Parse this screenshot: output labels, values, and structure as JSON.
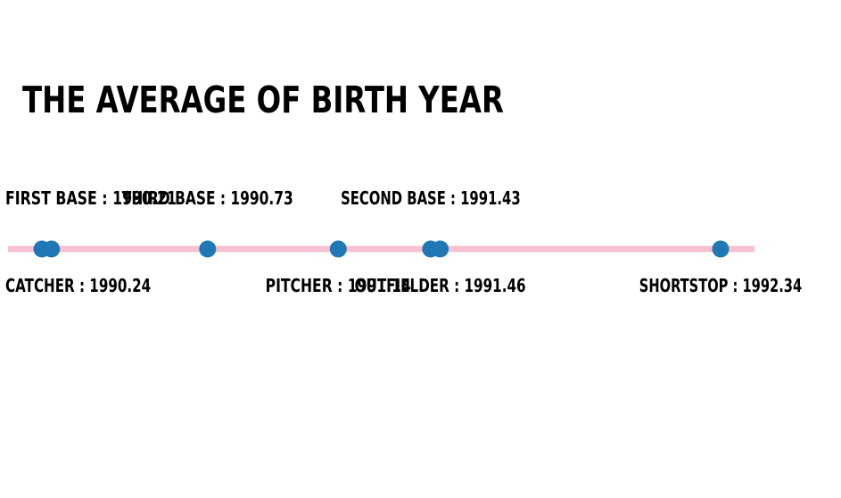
{
  "chart_data": {
    "type": "scatter",
    "title": "THE AVERAGE OF BIRTH YEAR",
    "points": [
      {
        "label": "FIRST BASE : 1990.21",
        "value": 1990.21,
        "side": "above"
      },
      {
        "label": "CATCHER : 1990.24",
        "value": 1990.24,
        "side": "below"
      },
      {
        "label": "THIRD BASE : 1990.73",
        "value": 1990.73,
        "side": "above"
      },
      {
        "label": "PITCHER : 1991.14",
        "value": 1991.14,
        "side": "below"
      },
      {
        "label": "SECOND BASE : 1991.43",
        "value": 1991.43,
        "side": "above"
      },
      {
        "label": "OUTFIELDER : 1991.46",
        "value": 1991.46,
        "side": "below"
      },
      {
        "label": "SHORTSTOP : 1992.34",
        "value": 1992.34,
        "side": "below"
      }
    ],
    "xlim": [
      1990.11,
      1992.43
    ],
    "grid": false,
    "colors": {
      "line": "#f7c1cf",
      "point": "#1f77b4",
      "text": "#000000"
    }
  }
}
